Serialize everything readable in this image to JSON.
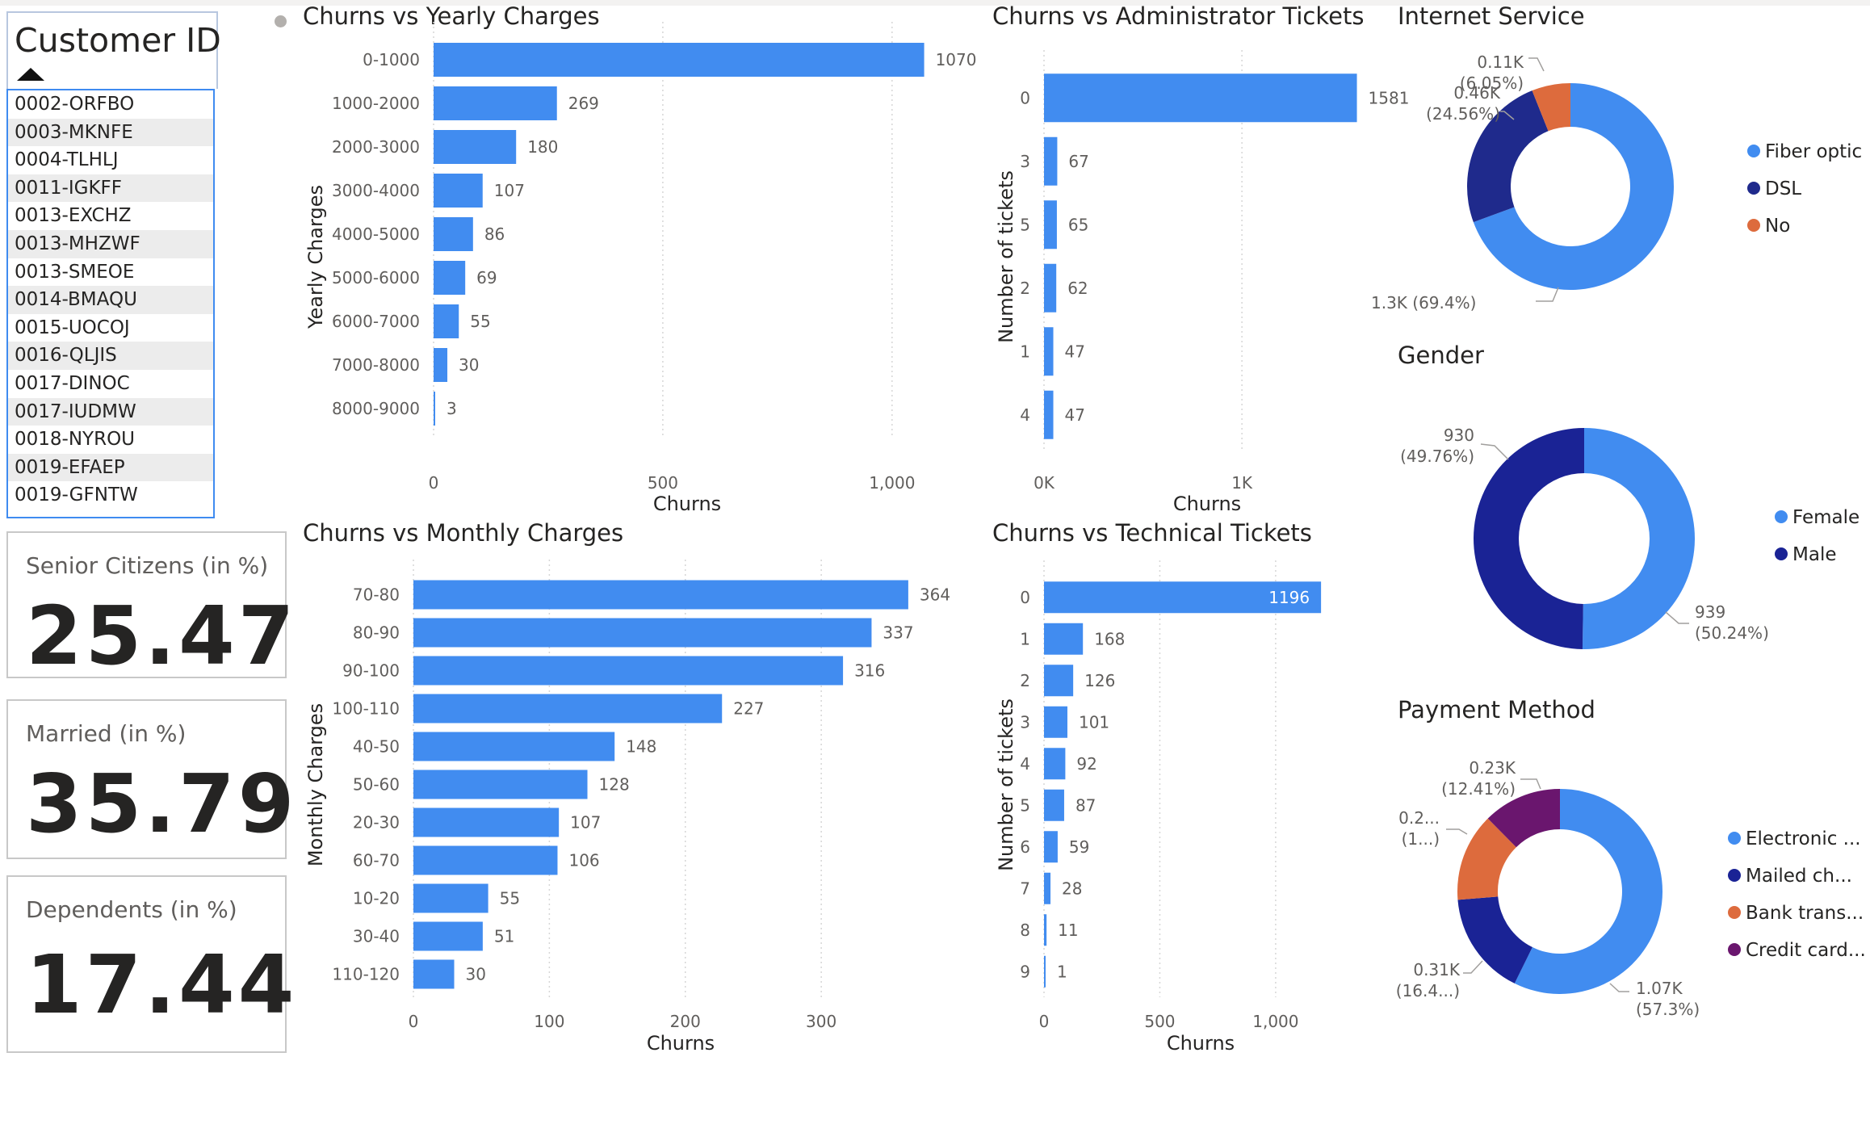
{
  "slicer": {
    "title": "Customer ID",
    "items": [
      "0002-ORFBO",
      "0003-MKNFE",
      "0004-TLHLJ",
      "0011-IGKFF",
      "0013-EXCHZ",
      "0013-MHZWF",
      "0013-SMEOE",
      "0014-BMAQU",
      "0015-UOCOJ",
      "0016-QLJIS",
      "0017-DINOC",
      "0017-IUDMW",
      "0018-NYROU",
      "0019-EFAEP",
      "0019-GFNTW"
    ]
  },
  "cards": [
    {
      "label": "Senior Citizens (in %)",
      "value": "25.47"
    },
    {
      "label": "Married (in %)",
      "value": "35.79"
    },
    {
      "label": "Dependents (in %)",
      "value": "17.44"
    }
  ],
  "colors": {
    "bar": "#418cf0",
    "fiber": "#418cf0",
    "dsl": "#1f2a8c",
    "no": "#dd6b3d",
    "female": "#418cf0",
    "male": "#1a2395",
    "electronic": "#418cf0",
    "mailed": "#1a2395",
    "bank": "#dd6b3d",
    "credit": "#6a166e"
  },
  "chart_data": [
    {
      "id": "yearly",
      "type": "bar",
      "title": "Churns vs Yearly Charges",
      "xlabel": "Churns",
      "ylabel": "Yearly Charges",
      "categories": [
        "0-1000",
        "1000-2000",
        "2000-3000",
        "3000-4000",
        "4000-5000",
        "5000-6000",
        "6000-7000",
        "7000-8000",
        "8000-9000"
      ],
      "values": [
        1070,
        269,
        180,
        107,
        86,
        69,
        55,
        30,
        3
      ],
      "data_labels": [
        "1070",
        "269",
        "180",
        "107",
        "86",
        "69",
        "55",
        "30",
        "3"
      ],
      "xticks": [
        0,
        500,
        1000
      ],
      "xtick_labels": [
        "0",
        "500",
        "1,000"
      ],
      "xlim": [
        0,
        1150
      ]
    },
    {
      "id": "admin",
      "type": "bar",
      "title": "Churns vs Administrator Tickets",
      "xlabel": "Churns",
      "ylabel": "Number of tickets",
      "categories": [
        "0",
        "3",
        "5",
        "2",
        "1",
        "4"
      ],
      "values": [
        1581,
        67,
        65,
        62,
        47,
        47
      ],
      "data_labels": [
        "1581",
        "67",
        "65",
        "62",
        "47",
        "47"
      ],
      "xticks": [
        0,
        1000
      ],
      "xtick_labels": [
        "0K",
        "1K"
      ],
      "xlim": [
        0,
        1640
      ]
    },
    {
      "id": "monthly",
      "type": "bar",
      "title": "Churns vs Monthly Charges",
      "xlabel": "Churns",
      "ylabel": "Monthly Charges",
      "categories": [
        "70-80",
        "80-90",
        "90-100",
        "100-110",
        "40-50",
        "50-60",
        "20-30",
        "60-70",
        "10-20",
        "30-40",
        "110-120"
      ],
      "values": [
        364,
        337,
        316,
        227,
        148,
        128,
        107,
        106,
        55,
        51,
        30
      ],
      "data_labels": [
        "364",
        "337",
        "316",
        "227",
        "148",
        "128",
        "107",
        "106",
        "55",
        "51",
        "30"
      ],
      "xticks": [
        0,
        100,
        200,
        300
      ],
      "xtick_labels": [
        "0",
        "100",
        "200",
        "300"
      ],
      "xlim": [
        0,
        370
      ]
    },
    {
      "id": "technical",
      "type": "bar",
      "title": "Churns vs Technical Tickets",
      "xlabel": "Churns",
      "ylabel": "Number of tickets",
      "categories": [
        "0",
        "1",
        "2",
        "3",
        "4",
        "5",
        "6",
        "7",
        "8",
        "9"
      ],
      "values": [
        1196,
        168,
        126,
        101,
        92,
        87,
        59,
        28,
        11,
        1
      ],
      "data_labels": [
        "1196",
        "168",
        "126",
        "101",
        "92",
        "87",
        "59",
        "28",
        "11",
        "1"
      ],
      "xticks": [
        0,
        500,
        1000
      ],
      "xtick_labels": [
        "0",
        "500",
        "1,000"
      ],
      "xlim": [
        0,
        1220
      ]
    },
    {
      "id": "internet",
      "type": "pie",
      "title": "Internet Service",
      "slices": [
        {
          "name": "Fiber optic",
          "value": 69.4,
          "label": "1.3K (69.4%)"
        },
        {
          "name": "DSL",
          "value": 24.56,
          "label": "0.46K (24.56%)"
        },
        {
          "name": "No",
          "value": 6.05,
          "label": "0.11K (6.05%)"
        }
      ]
    },
    {
      "id": "gender",
      "type": "pie",
      "title": "Gender",
      "slices": [
        {
          "name": "Female",
          "value": 50.24,
          "label": "939 (50.24%)"
        },
        {
          "name": "Male",
          "value": 49.76,
          "label": "930 (49.76%)"
        }
      ]
    },
    {
      "id": "payment",
      "type": "pie",
      "title": "Payment Method",
      "slices": [
        {
          "name": "Electronic ...",
          "value": 57.3,
          "label": "1.07K (57.3%)"
        },
        {
          "name": "Mailed ch...",
          "value": 16.4,
          "label": "0.31K (16.4...)"
        },
        {
          "name": "Bank trans...",
          "value": 13.9,
          "label": "0.2... (1...)"
        },
        {
          "name": "Credit card...",
          "value": 12.41,
          "label": "0.23K (12.41%)"
        }
      ]
    }
  ]
}
